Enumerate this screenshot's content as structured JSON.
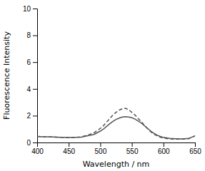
{
  "chart_data": {
    "type": "line",
    "xlabel": "Wavelength / nm",
    "ylabel": "Fluorescence Intensity",
    "x": [
      400,
      410,
      420,
      430,
      440,
      450,
      460,
      470,
      480,
      490,
      500,
      505,
      510,
      515,
      520,
      525,
      530,
      535,
      540,
      545,
      550,
      555,
      560,
      565,
      570,
      575,
      580,
      585,
      590,
      595,
      600,
      610,
      620,
      630,
      640,
      650
    ],
    "xlim": [
      400,
      650
    ],
    "ylim": [
      0,
      10
    ],
    "xticks": [
      400,
      450,
      500,
      550,
      600,
      650
    ],
    "yticks": [
      0,
      2,
      4,
      6,
      8,
      10
    ],
    "series": [
      {
        "color": "#555555",
        "line_style": "solid",
        "values": [
          0.45,
          0.43,
          0.42,
          0.4,
          0.38,
          0.37,
          0.38,
          0.4,
          0.5,
          0.6,
          0.85,
          1.0,
          1.2,
          1.4,
          1.58,
          1.72,
          1.82,
          1.9,
          1.93,
          1.9,
          1.85,
          1.75,
          1.6,
          1.45,
          1.25,
          1.05,
          0.85,
          0.68,
          0.55,
          0.45,
          0.38,
          0.3,
          0.28,
          0.27,
          0.3,
          0.5
        ]
      },
      {
        "color": "#555555",
        "line_style": "dashed",
        "values": [
          0.45,
          0.43,
          0.42,
          0.4,
          0.38,
          0.37,
          0.38,
          0.42,
          0.55,
          0.72,
          1.05,
          1.25,
          1.52,
          1.78,
          2.05,
          2.25,
          2.42,
          2.52,
          2.55,
          2.45,
          2.25,
          2.05,
          1.8,
          1.55,
          1.28,
          1.02,
          0.8,
          0.62,
          0.5,
          0.4,
          0.33,
          0.27,
          0.25,
          0.25,
          0.28,
          0.5
        ]
      }
    ]
  }
}
